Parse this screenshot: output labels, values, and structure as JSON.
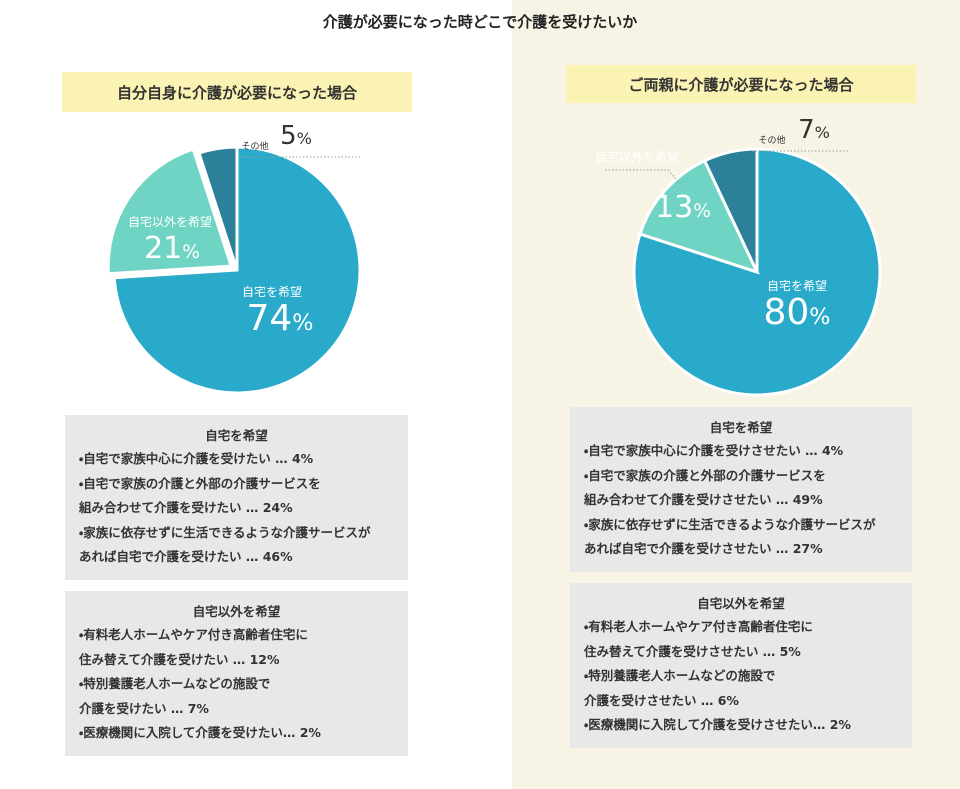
{
  "title": "介護が必要になった時どこで介護を受けたいか",
  "chart_data": [
    {
      "type": "pie",
      "title": "自分自身に介護が必要になった場合",
      "categories": [
        "自宅を希望",
        "自宅以外を希望",
        "その他"
      ],
      "values": [
        74,
        21,
        5
      ],
      "value_labels": [
        "74%",
        "21%",
        "5%"
      ],
      "colors": [
        "#29aacb",
        "#6fd4c4",
        "#2d8099"
      ]
    },
    {
      "type": "pie",
      "title": "ご両親に介護が必要になった場合",
      "categories": [
        "自宅を希望",
        "自宅以外を希望",
        "その他"
      ],
      "values": [
        80,
        13,
        7
      ],
      "value_labels": [
        "80%",
        "13%",
        "7%"
      ],
      "colors": [
        "#29aacb",
        "#6fd4c4",
        "#2d8099"
      ]
    }
  ],
  "panels": [
    {
      "boxes": [
        {
          "heading": "自宅を希望",
          "lines": [
            "・自宅で家族中心に介護を受けたい … 4%",
            "・自宅で家族の介護と外部の介護サービスを",
            "組み合わせて介護を受けたい … 24%",
            "・家族に依存せずに生活できるような介護サービスが",
            "あれば自宅で介護を受けたい … 46%"
          ]
        },
        {
          "heading": "自宅以外を希望",
          "lines": [
            "・有料老人ホームやケア付き高齢者住宅に",
            "住み替えて介護を受けたい … 12%",
            "・特別養護老人ホームなどの施設で",
            "介護を受けたい … 7%",
            "・医療機関に入院して介護を受けたい… 2%"
          ]
        }
      ]
    },
    {
      "boxes": [
        {
          "heading": "自宅を希望",
          "lines": [
            "・自宅で家族中心に介護を受けさせたい … 4%",
            "・自宅で家族の介護と外部の介護サービスを",
            "組み合わせて介護を受けさせたい … 49%",
            "・家族に依存せずに生活できるような介護サービスが",
            "あれば自宅で介護を受けさせたい … 27%"
          ]
        },
        {
          "heading": "自宅以外を希望",
          "lines": [
            "・有料老人ホームやケア付き高齢者住宅に",
            "住み替えて介護を受けさせたい … 5%",
            "・特別養護老人ホームなどの施設で",
            "介護を受けさせたい … 6%",
            "・医療機関に入院して介護を受けさせたい… 2%"
          ]
        }
      ]
    }
  ]
}
